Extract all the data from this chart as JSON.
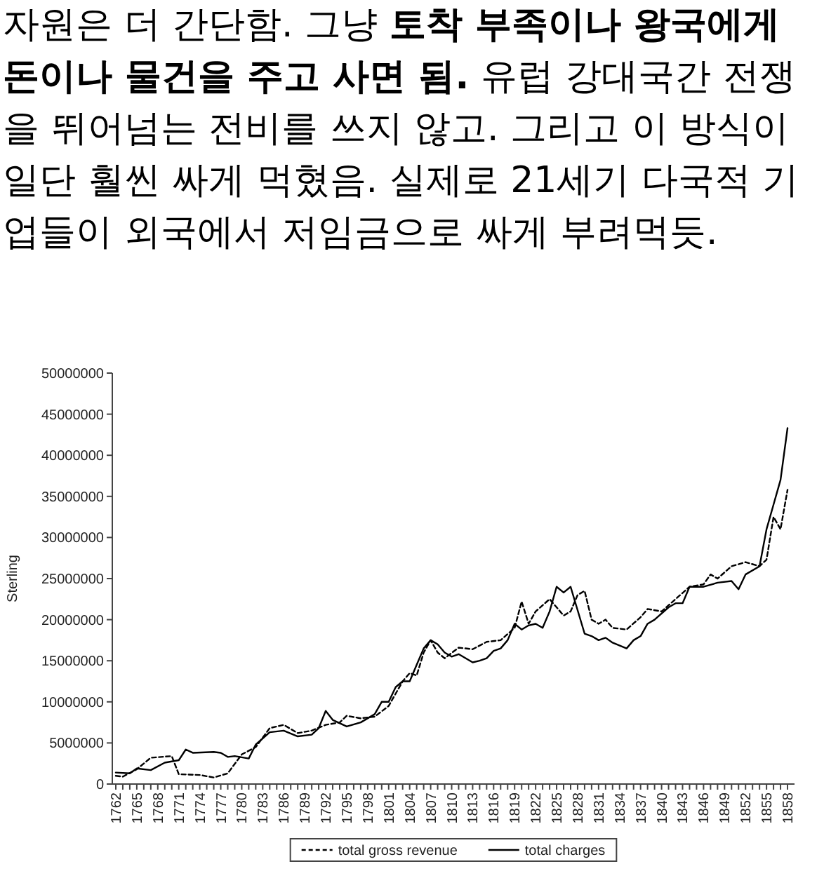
{
  "chart_data": {
    "type": "line",
    "annotations": [
      "자원은 더 간단함. 그냥",
      "토착 부족이나 왕국에게 돈이나 물건을 주고 사면 됨.",
      "유럽 강대국간 전쟁을 뛰어넘는 전비를 쓰지 않고. 그리고 이 방식이 일단 훨씬 싸게 먹혔음. 실제로 21세기 다국적 기업들이 외국에서 저임금으로 싸게 부려먹듯."
    ],
    "ylabel": "Sterling",
    "xlim": [
      1761.5,
      1859
    ],
    "xticks": [
      1762,
      {
        "value": 1763,
        "label": null
      },
      {
        "value": 1764,
        "label": null
      },
      1765,
      {
        "value": 1766,
        "label": null
      },
      {
        "value": 1767,
        "label": null
      },
      1768,
      {
        "value": 1769,
        "label": null
      },
      {
        "value": 1770,
        "label": null
      },
      1771,
      {
        "value": 1772,
        "label": null
      },
      {
        "value": 1773,
        "label": null
      },
      1774,
      {
        "value": 1775,
        "label": null
      },
      {
        "value": 1776,
        "label": null
      },
      1777,
      {
        "value": 1778,
        "label": null
      },
      {
        "value": 1779,
        "label": null
      },
      1780,
      {
        "value": 1781,
        "label": null
      },
      {
        "value": 1782,
        "label": null
      },
      1783,
      {
        "value": 1784,
        "label": null
      },
      {
        "value": 1785,
        "label": null
      },
      1786,
      {
        "value": 1787,
        "label": null
      },
      {
        "value": 1788,
        "label": null
      },
      1789,
      {
        "value": 1790,
        "label": null
      },
      {
        "value": 1791,
        "label": null
      },
      1792,
      {
        "value": 1793,
        "label": null
      },
      {
        "value": 1794,
        "label": null
      },
      1795,
      {
        "value": 1796,
        "label": null
      },
      {
        "value": 1797,
        "label": null
      },
      1798,
      {
        "value": 1799,
        "label": null
      },
      {
        "value": 1800,
        "label": null
      },
      1801,
      {
        "value": 1802,
        "label": null
      },
      {
        "value": 1803,
        "label": null
      },
      1804,
      {
        "value": 1805,
        "label": null
      },
      {
        "value": 1806,
        "label": null
      },
      1807,
      {
        "value": 1808,
        "label": null
      },
      {
        "value": 1809,
        "label": null
      },
      1810,
      {
        "value": 1811,
        "label": null
      },
      {
        "value": 1812,
        "label": null
      },
      1813,
      {
        "value": 1814,
        "label": null
      },
      {
        "value": 1815,
        "label": null
      },
      1816,
      {
        "value": 1817,
        "label": null
      },
      {
        "value": 1818,
        "label": null
      },
      1819,
      {
        "value": 1820,
        "label": null
      },
      {
        "value": 1821,
        "label": null
      },
      1822,
      {
        "value": 1823,
        "label": null
      },
      {
        "value": 1824,
        "label": null
      },
      1825,
      {
        "value": 1826,
        "label": null
      },
      {
        "value": 1827,
        "label": null
      },
      1828,
      {
        "value": 1829,
        "label": null
      },
      {
        "value": 1830,
        "label": null
      },
      1831,
      {
        "value": 1832,
        "label": null
      },
      {
        "value": 1833,
        "label": null
      },
      1834,
      {
        "value": 1835,
        "label": null
      },
      {
        "value": 1836,
        "label": null
      },
      1837,
      {
        "value": 1838,
        "label": null
      },
      {
        "value": 1839,
        "label": null
      },
      1840,
      {
        "value": 1841,
        "label": null
      },
      {
        "value": 1842,
        "label": null
      },
      1843,
      {
        "value": 1844,
        "label": null
      },
      {
        "value": 1845,
        "label": null
      },
      1846,
      {
        "value": 1847,
        "label": null
      },
      {
        "value": 1848,
        "label": null
      },
      1849,
      {
        "value": 1850,
        "label": null
      },
      {
        "value": 1851,
        "label": null
      },
      1852,
      {
        "value": 1853,
        "label": null
      },
      {
        "value": 1854,
        "label": null
      },
      1855,
      {
        "value": 1856,
        "label": null
      },
      {
        "value": 1857,
        "label": null
      },
      1858
    ],
    "ylim": [
      0,
      50000000
    ],
    "yticks": [
      0,
      5000000,
      10000000,
      15000000,
      20000000,
      25000000,
      30000000,
      35000000,
      40000000,
      45000000,
      50000000
    ],
    "legend": "bottom",
    "series": [
      {
        "name": "total gross revenue",
        "color": "#000000",
        "line_style": "dashed",
        "x": [
          1762,
          1763,
          1765,
          1767,
          1770,
          1771,
          1774,
          1776,
          1778,
          1780,
          1782,
          1784,
          1786,
          1788,
          1790,
          1792,
          1794,
          1795,
          1797,
          1799,
          1801,
          1803,
          1804,
          1805,
          1806,
          1807,
          1808,
          1809,
          1811,
          1813,
          1815,
          1817,
          1819,
          1820,
          1821,
          1822,
          1824,
          1826,
          1827,
          1828,
          1829,
          1830,
          1831,
          1832,
          1833,
          1835,
          1837,
          1838,
          1840,
          1842,
          1844,
          1846,
          1847,
          1848,
          1850,
          1852,
          1854,
          1855,
          1856,
          1857,
          1858
        ],
        "values": [
          1000000,
          900000,
          1800000,
          3200000,
          3400000,
          1200000,
          1100000,
          800000,
          1300000,
          3600000,
          4500000,
          6800000,
          7200000,
          6200000,
          6500000,
          7200000,
          7500000,
          8300000,
          8000000,
          8200000,
          9500000,
          12500000,
          13500000,
          13200000,
          16000000,
          17500000,
          16000000,
          15300000,
          16600000,
          16400000,
          17300000,
          17500000,
          19000000,
          22200000,
          19500000,
          21000000,
          22500000,
          20500000,
          21000000,
          23000000,
          23500000,
          20000000,
          19500000,
          20000000,
          19000000,
          18800000,
          20300000,
          21300000,
          21000000,
          22500000,
          24000000,
          24300000,
          25500000,
          25000000,
          26500000,
          27000000,
          26500000,
          27300000,
          32500000,
          31000000,
          35800000
        ]
      },
      {
        "name": "total charges",
        "color": "#000000",
        "line_style": "solid",
        "x": [
          1762,
          1764,
          1765,
          1767,
          1769,
          1771,
          1772,
          1773,
          1776,
          1777,
          1778,
          1779,
          1781,
          1782,
          1784,
          1786,
          1788,
          1790,
          1791,
          1792,
          1793,
          1795,
          1797,
          1799,
          1800,
          1801,
          1802,
          1803,
          1804,
          1805,
          1806,
          1807,
          1808,
          1809,
          1810,
          1811,
          1813,
          1814,
          1815,
          1816,
          1817,
          1818,
          1819,
          1820,
          1821,
          1822,
          1823,
          1824,
          1825,
          1826,
          1827,
          1829,
          1830,
          1831,
          1832,
          1833,
          1835,
          1836,
          1837,
          1838,
          1839,
          1841,
          1842,
          1843,
          1844,
          1846,
          1848,
          1850,
          1851,
          1852,
          1854,
          1855,
          1856,
          1857,
          1858
        ],
        "values": [
          1400000,
          1300000,
          1900000,
          1700000,
          2600000,
          2900000,
          4200000,
          3800000,
          3900000,
          3800000,
          3300000,
          3400000,
          3100000,
          4800000,
          6300000,
          6500000,
          5800000,
          6000000,
          6800000,
          8900000,
          7800000,
          7000000,
          7500000,
          8500000,
          10000000,
          10000000,
          11800000,
          12500000,
          12500000,
          14500000,
          16500000,
          17500000,
          17000000,
          16000000,
          15500000,
          15800000,
          14800000,
          15000000,
          15300000,
          16200000,
          16500000,
          17500000,
          19500000,
          18800000,
          19300000,
          19500000,
          19000000,
          21000000,
          24000000,
          23300000,
          24000000,
          18300000,
          18000000,
          17500000,
          17800000,
          17200000,
          16500000,
          17500000,
          18000000,
          19500000,
          20000000,
          21500000,
          22000000,
          22000000,
          24000000,
          24000000,
          24500000,
          24700000,
          23700000,
          25500000,
          26500000,
          31000000,
          34000000,
          37000000,
          43300000
        ]
      }
    ]
  }
}
